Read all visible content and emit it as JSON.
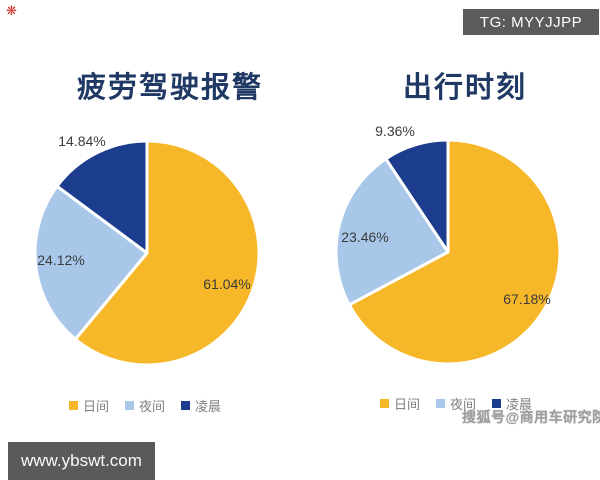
{
  "badges": {
    "tg": "TG: MYYJJPP",
    "url_watermark": "www.ybswt.com",
    "sohu_watermark": "搜狐号@商用车研究院",
    "corner_mark": "❋"
  },
  "palette": {
    "slice_day": "#F6B829",
    "slice_night": "#A9C7E9",
    "slice_dawn": "#1C3C8E",
    "title_navy": "#1F3864",
    "label_gray": "#3B3B3B",
    "legend_gray": "#7F7F7F",
    "badge_bg": "#5B5B5B",
    "watermark_gray": "#9E9E9E",
    "corner_red": "#D0342C"
  },
  "chart_data": [
    {
      "type": "pie",
      "title": "疲劳驾驶报警",
      "categories": [
        "日间",
        "夜间",
        "凌晨"
      ],
      "values": [
        61.04,
        24.12,
        14.84
      ],
      "value_labels": [
        "61.04%",
        "24.12%",
        "14.84%"
      ],
      "colors": [
        "#F6B829",
        "#A9C7E9",
        "#1C3C8E"
      ],
      "start_angle_deg": 0,
      "direction": "clockwise",
      "legend_position": "bottom"
    },
    {
      "type": "pie",
      "title": "出行时刻",
      "categories": [
        "日间",
        "夜间",
        "凌晨"
      ],
      "values": [
        67.18,
        23.46,
        9.36
      ],
      "value_labels": [
        "67.18%",
        "23.46%",
        "9.36%"
      ],
      "colors": [
        "#F6B829",
        "#A9C7E9",
        "#1C3C8E"
      ],
      "start_angle_deg": 0,
      "direction": "clockwise",
      "legend_position": "bottom"
    }
  ]
}
